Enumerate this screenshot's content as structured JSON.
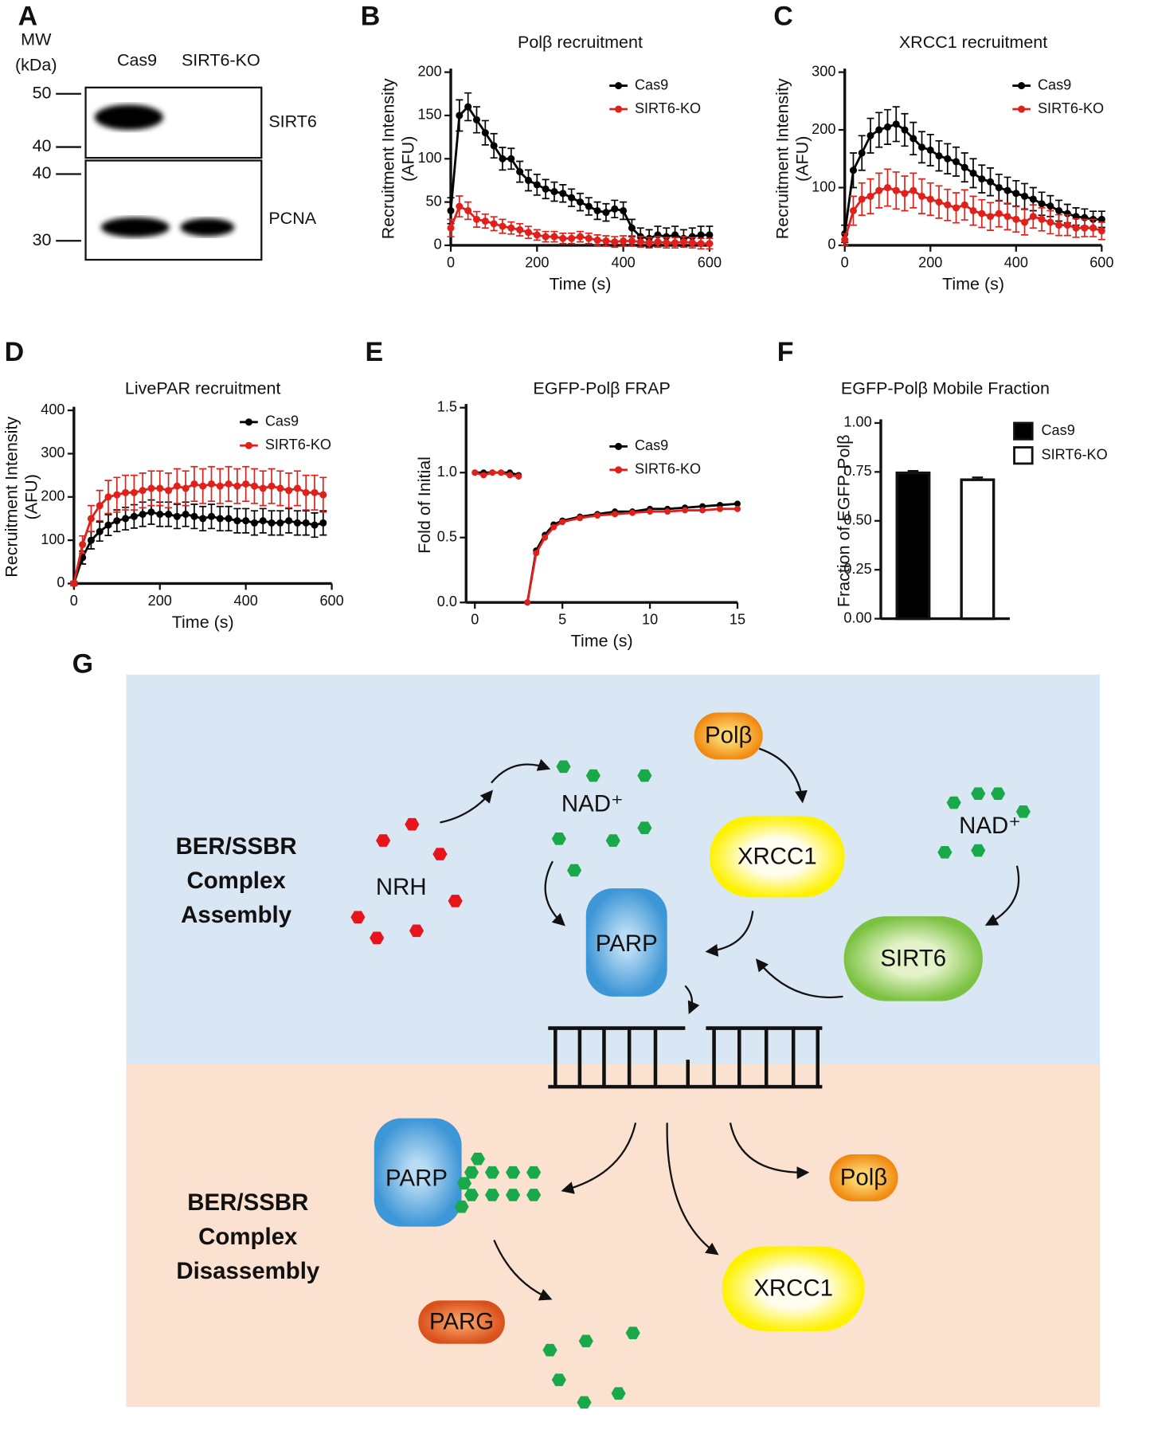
{
  "panel_labels": [
    "A",
    "B",
    "C",
    "D",
    "E",
    "F",
    "G"
  ],
  "blot": {
    "mw_label": [
      "MW",
      "(kDa)"
    ],
    "lanes": [
      "Cas9",
      "SIRT6-KO"
    ],
    "markers": [
      50,
      40,
      40,
      30
    ],
    "proteins": [
      "SIRT6",
      "PCNA"
    ]
  },
  "chart_data": [
    {
      "type": "line",
      "title": "Polβ recruitment",
      "xlabel": "Time (s)",
      "ylabel": [
        "Recruitment Intensity",
        "(AFU)"
      ],
      "x": [
        0,
        20,
        40,
        60,
        80,
        100,
        120,
        140,
        160,
        180,
        200,
        220,
        240,
        260,
        280,
        300,
        320,
        340,
        360,
        380,
        400,
        420,
        440,
        460,
        480,
        500,
        520,
        540,
        560,
        580,
        600
      ],
      "series": [
        {
          "name": "Cas9",
          "color": "#000000",
          "values": [
            40,
            150,
            160,
            145,
            130,
            115,
            100,
            100,
            85,
            75,
            70,
            65,
            62,
            60,
            55,
            50,
            45,
            40,
            38,
            42,
            40,
            20,
            10,
            8,
            12,
            10,
            12,
            8,
            10,
            12,
            12
          ],
          "errors": [
            15,
            18,
            16,
            15,
            14,
            14,
            13,
            12,
            12,
            12,
            12,
            11,
            11,
            10,
            10,
            10,
            10,
            10,
            10,
            10,
            10,
            10,
            10,
            10,
            10,
            10,
            10,
            10,
            10,
            10,
            10
          ]
        },
        {
          "name": "SIRT6-KO",
          "color": "#e0201b",
          "values": [
            20,
            45,
            40,
            30,
            28,
            25,
            22,
            20,
            18,
            15,
            12,
            10,
            10,
            8,
            8,
            10,
            8,
            6,
            5,
            4,
            5,
            5,
            4,
            3,
            4,
            3,
            3,
            4,
            3,
            2,
            2
          ],
          "errors": [
            10,
            12,
            10,
            9,
            8,
            8,
            8,
            7,
            7,
            7,
            6,
            6,
            6,
            6,
            6,
            6,
            6,
            6,
            6,
            6,
            6,
            6,
            6,
            6,
            6,
            6,
            6,
            6,
            6,
            6,
            6
          ]
        }
      ],
      "xlim": [
        0,
        600
      ],
      "xticks": [
        0,
        200,
        400,
        600
      ],
      "ylim": [
        0,
        200
      ],
      "yticks": [
        0,
        50,
        100,
        150,
        200
      ],
      "grid": false,
      "legend": "upper right"
    },
    {
      "type": "line",
      "title": "XRCC1 recruitment",
      "xlabel": "Time (s)",
      "ylabel": [
        "Recruitment Intensity",
        "(AFU)"
      ],
      "x": [
        0,
        20,
        40,
        60,
        80,
        100,
        120,
        140,
        160,
        180,
        200,
        220,
        240,
        260,
        280,
        300,
        320,
        340,
        360,
        380,
        400,
        420,
        440,
        460,
        480,
        500,
        520,
        540,
        560,
        580,
        600
      ],
      "series": [
        {
          "name": "Cas9",
          "color": "#000000",
          "values": [
            20,
            130,
            160,
            190,
            200,
            205,
            210,
            200,
            185,
            170,
            165,
            155,
            150,
            145,
            135,
            125,
            115,
            110,
            100,
            95,
            90,
            85,
            80,
            72,
            68,
            60,
            55,
            50,
            48,
            45,
            45
          ],
          "errors": [
            15,
            30,
            30,
            30,
            30,
            30,
            30,
            28,
            28,
            27,
            27,
            26,
            26,
            25,
            25,
            25,
            24,
            24,
            23,
            23,
            22,
            22,
            20,
            20,
            18,
            18,
            16,
            15,
            15,
            14,
            14
          ]
        },
        {
          "name": "SIRT6-KO",
          "color": "#e0201b",
          "values": [
            10,
            60,
            80,
            85,
            95,
            100,
            95,
            90,
            95,
            85,
            80,
            75,
            70,
            65,
            70,
            60,
            55,
            50,
            55,
            50,
            45,
            40,
            50,
            45,
            40,
            35,
            35,
            30,
            30,
            30,
            25
          ],
          "errors": [
            10,
            25,
            28,
            30,
            30,
            32,
            32,
            30,
            30,
            30,
            28,
            28,
            27,
            26,
            26,
            25,
            24,
            24,
            23,
            23,
            22,
            22,
            20,
            20,
            20,
            18,
            18,
            16,
            15,
            15,
            15
          ]
        }
      ],
      "xlim": [
        0,
        600
      ],
      "xticks": [
        0,
        200,
        400,
        600
      ],
      "ylim": [
        0,
        300
      ],
      "yticks": [
        0,
        100,
        200,
        300
      ],
      "grid": false,
      "legend": "upper right"
    },
    {
      "type": "line",
      "title": "LivePAR recruitment",
      "xlabel": "Time (s)",
      "ylabel": [
        "Recruitment Intensity",
        "(AFU)"
      ],
      "x": [
        0,
        20,
        40,
        60,
        80,
        100,
        120,
        140,
        160,
        180,
        200,
        220,
        240,
        260,
        280,
        300,
        320,
        340,
        360,
        380,
        400,
        420,
        440,
        460,
        480,
        500,
        520,
        540,
        560,
        580
      ],
      "series": [
        {
          "name": "Cas9",
          "color": "#000000",
          "values": [
            0,
            60,
            100,
            120,
            135,
            145,
            150,
            155,
            160,
            165,
            160,
            160,
            155,
            160,
            155,
            150,
            155,
            150,
            150,
            145,
            145,
            140,
            145,
            140,
            140,
            145,
            140,
            140,
            135,
            140
          ],
          "errors": [
            5,
            15,
            20,
            22,
            24,
            25,
            26,
            27,
            28,
            28,
            28,
            28,
            28,
            28,
            28,
            28,
            28,
            28,
            28,
            28,
            28,
            28,
            28,
            28,
            28,
            28,
            28,
            28,
            28,
            28
          ]
        },
        {
          "name": "SIRT6-KO",
          "color": "#e0201b",
          "values": [
            0,
            90,
            150,
            180,
            200,
            205,
            210,
            210,
            215,
            220,
            220,
            215,
            225,
            220,
            230,
            225,
            230,
            225,
            230,
            225,
            230,
            225,
            220,
            225,
            220,
            215,
            220,
            210,
            210,
            205
          ],
          "errors": [
            5,
            20,
            30,
            35,
            38,
            40,
            40,
            40,
            40,
            40,
            40,
            40,
            40,
            40,
            40,
            40,
            40,
            40,
            40,
            40,
            40,
            40,
            40,
            40,
            40,
            40,
            40,
            40,
            40,
            40
          ]
        }
      ],
      "xlim": [
        0,
        600
      ],
      "xticks": [
        0,
        200,
        400,
        600
      ],
      "ylim": [
        0,
        400
      ],
      "yticks": [
        0,
        100,
        200,
        300,
        400
      ],
      "grid": false,
      "legend": "upper right"
    },
    {
      "type": "line",
      "title": "EGFP-Polβ FRAP",
      "xlabel": "Time (s)",
      "ylabel": [
        "Fold of Initial"
      ],
      "x": [
        0,
        0.5,
        1,
        1.5,
        2,
        2.5,
        2.75,
        3,
        3.5,
        4,
        4.5,
        5,
        6,
        7,
        8,
        9,
        10,
        11,
        12,
        13,
        14,
        15
      ],
      "series": [
        {
          "name": "Cas9",
          "color": "#000000",
          "values": [
            1,
            1,
            1,
            1,
            1,
            0.98,
            null,
            0,
            0.4,
            0.52,
            0.6,
            0.63,
            0.66,
            0.68,
            0.7,
            0.7,
            0.72,
            0.72,
            0.73,
            0.74,
            0.75,
            0.76
          ]
        },
        {
          "name": "SIRT6-KO",
          "color": "#e0201b",
          "values": [
            1,
            0.98,
            1,
            1,
            0.98,
            0.97,
            null,
            0,
            0.38,
            0.5,
            0.58,
            0.62,
            0.65,
            0.67,
            0.68,
            0.69,
            0.7,
            0.7,
            0.71,
            0.71,
            0.72,
            0.72
          ]
        }
      ],
      "xlim": [
        -0.5,
        15
      ],
      "xticks": [
        0,
        5,
        10,
        15
      ],
      "ylim": [
        0,
        1.5
      ],
      "yticks": [
        {
          "value": 0,
          "label": "0.0"
        },
        0.5,
        {
          "value": 1,
          "label": "1.0"
        },
        1.5
      ],
      "grid": false,
      "legend": "upper right"
    },
    {
      "type": "bar",
      "title": "EGFP-Polβ Mobile Fraction",
      "ylabel": [
        "Fraction of EGFP-Polβ"
      ],
      "categories": [
        null
      ],
      "series": [
        {
          "name": "Cas9",
          "color": "#000000",
          "values": [
            0.745
          ],
          "errors": [
            0.01
          ]
        },
        {
          "name": "SIRT6-KO",
          "color": "#ffffff",
          "values": [
            0.71
          ],
          "errors": [
            0.012
          ]
        }
      ],
      "ylim": [
        0,
        1
      ],
      "yticks": [
        {
          "value": 0,
          "label": "0.00"
        },
        0.25,
        {
          "value": 0.5,
          "label": "0.50"
        },
        0.75,
        {
          "value": 1,
          "label": "1.00"
        }
      ],
      "grid": false,
      "legend": "upper right"
    }
  ],
  "diagram": {
    "assembly_label": [
      "BER/SSBR",
      "Complex",
      "Assembly"
    ],
    "disassembly_label": [
      "BER/SSBR",
      "Complex",
      "Disassembly"
    ],
    "nodes": [
      "Polβ",
      "NAD⁺",
      "XRCC1",
      "NAD⁺",
      "NRH",
      "PARP",
      "SIRT6",
      "PARP",
      "Polβ",
      "XRCC1",
      "PARG"
    ]
  }
}
